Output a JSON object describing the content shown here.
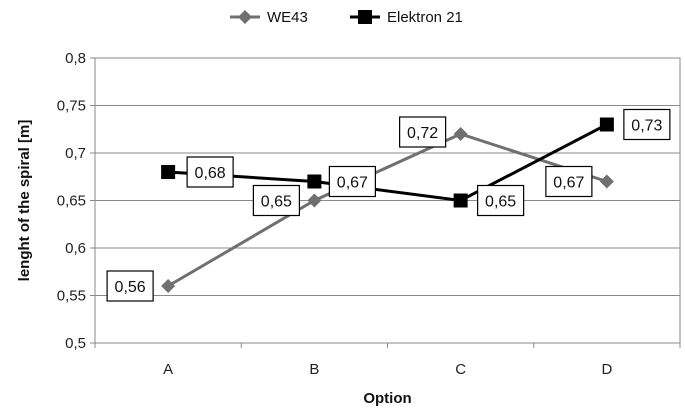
{
  "chart_data": {
    "type": "line",
    "categories": [
      "A",
      "B",
      "C",
      "D"
    ],
    "series": [
      {
        "name": "WE43",
        "values": [
          0.56,
          0.65,
          0.72,
          0.67
        ],
        "labels": [
          "0,56",
          "0,65",
          "0,72",
          "0,67"
        ],
        "color": "#707070",
        "marker": "diamond"
      },
      {
        "name": "Elektron 21",
        "values": [
          0.68,
          0.67,
          0.65,
          0.73
        ],
        "labels": [
          "0,68",
          "0,67",
          "0,65",
          "0,73"
        ],
        "color": "#000000",
        "marker": "square"
      }
    ],
    "xlabel": "Option",
    "ylabel": "lenght of the spiral [m]",
    "ylim": [
      0.5,
      0.8
    ],
    "yticks": [
      0.5,
      0.55,
      0.6,
      0.65,
      0.7,
      0.75,
      0.8
    ],
    "ytick_labels": [
      "0,5",
      "0,55",
      "0,6",
      "0,65",
      "0,7",
      "0,75",
      "0,8"
    ],
    "grid": true,
    "legend_position": "top"
  }
}
